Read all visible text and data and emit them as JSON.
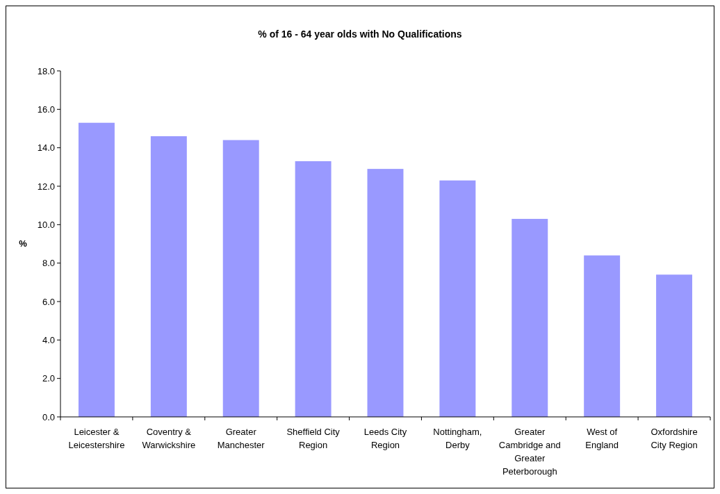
{
  "chart_data": {
    "type": "bar",
    "title": "% of 16 - 64 year olds with No Qualifications",
    "ylabel": "%",
    "categories": [
      "Leicester & Leicestershire",
      "Coventry & Warwickshire",
      "Greater Manchester",
      "Sheffield City Region",
      "Leeds City Region",
      "Nottingham, Derby",
      "Greater Cambridge and Greater Peterborough",
      "West of England",
      "Oxfordshire City Region"
    ],
    "values": [
      15.3,
      14.6,
      14.4,
      13.3,
      12.9,
      12.3,
      10.3,
      8.4,
      7.4
    ],
    "color": "#9999ff",
    "ylim": [
      0,
      18
    ],
    "yticks": [
      {
        "value": 0,
        "label": "0.0"
      },
      {
        "value": 2,
        "label": "2.0"
      },
      {
        "value": 4,
        "label": "4.0"
      },
      {
        "value": 6,
        "label": "6.0"
      },
      {
        "value": 8,
        "label": "8.0"
      },
      {
        "value": 10,
        "label": "10.0"
      },
      {
        "value": 12,
        "label": "12.0"
      },
      {
        "value": 14,
        "label": "14.0"
      },
      {
        "value": 16,
        "label": "16.0"
      },
      {
        "value": 18,
        "label": "18.0"
      }
    ],
    "grid": false
  }
}
